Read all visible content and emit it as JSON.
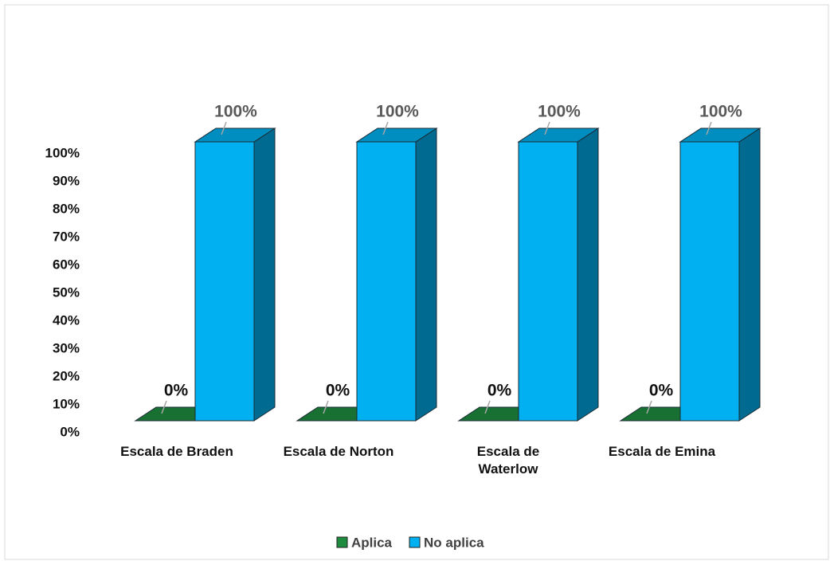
{
  "chart_data": {
    "type": "bar3d",
    "categories": [
      "Escala de Braden",
      "Escala de Norton",
      "Escala de Waterlow",
      "Escala de Emina"
    ],
    "series": [
      {
        "name": "Aplica",
        "color": "#1e8c3e",
        "values": [
          0,
          0,
          0,
          0
        ],
        "value_labels": [
          "0%",
          "0%",
          "0%",
          "0%"
        ]
      },
      {
        "name": "No aplica",
        "color": "#00b0f0",
        "values": [
          100,
          100,
          100,
          100
        ],
        "value_labels": [
          "100%",
          "100%",
          "100%",
          "100%"
        ]
      }
    ],
    "ylim": [
      0,
      100
    ],
    "yticks": [
      {
        "value": 0,
        "label": "0%"
      },
      {
        "value": 10,
        "label": "10%"
      },
      {
        "value": 20,
        "label": "20%"
      },
      {
        "value": 30,
        "label": "30%"
      },
      {
        "value": 40,
        "label": "40%"
      },
      {
        "value": 50,
        "label": "50%"
      },
      {
        "value": 60,
        "label": "60%"
      },
      {
        "value": 70,
        "label": "70%"
      },
      {
        "value": 80,
        "label": "80%"
      },
      {
        "value": 90,
        "label": "90%"
      },
      {
        "value": 100,
        "label": "100%"
      }
    ],
    "grid": false,
    "legend": "bottom"
  }
}
